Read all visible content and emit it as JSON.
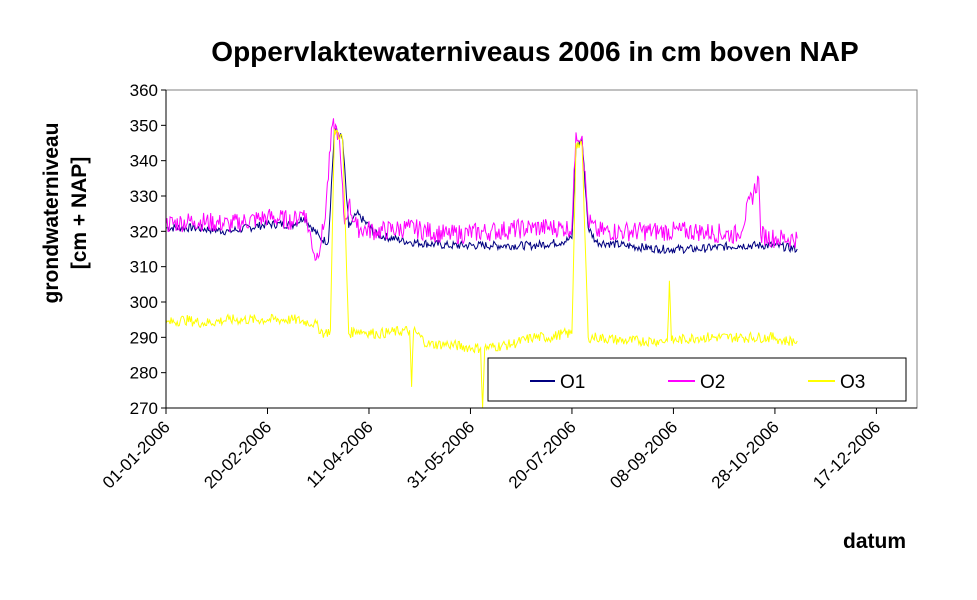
{
  "chart_data": {
    "type": "line",
    "title": "Oppervlaktewaterniveaus 2006 in cm boven NAP",
    "ylabel_lines": [
      "grondwaterniveau",
      "[cm + NAP]"
    ],
    "xlabel": "datum",
    "ylim": [
      270,
      360
    ],
    "yticks": [
      270,
      280,
      290,
      300,
      310,
      320,
      330,
      340,
      350,
      360
    ],
    "xlim": [
      "2006-01-01",
      "2007-01-06"
    ],
    "xticks": [
      "01-01-2006",
      "20-02-2006",
      "11-04-2006",
      "31-05-2006",
      "20-07-2006",
      "08-09-2006",
      "28-10-2006",
      "17-12-2006"
    ],
    "grid": false,
    "legend_position": "bottom-right",
    "series": [
      {
        "name": "O1",
        "color": "#000080",
        "x": [
          "2006-01-01",
          "2006-01-15",
          "2006-02-01",
          "2006-02-20",
          "2006-03-05",
          "2006-03-10",
          "2006-03-18",
          "2006-03-22",
          "2006-03-25",
          "2006-03-29",
          "2006-04-01",
          "2006-04-05",
          "2006-04-15",
          "2006-05-01",
          "2006-05-20",
          "2006-06-10",
          "2006-07-01",
          "2006-07-15",
          "2006-07-20",
          "2006-07-22",
          "2006-07-25",
          "2006-07-28",
          "2006-08-01",
          "2006-08-15",
          "2006-09-01",
          "2006-09-20",
          "2006-10-10",
          "2006-10-28",
          "2006-11-08"
        ],
        "values": [
          321,
          321,
          320,
          322,
          322,
          324,
          318,
          317,
          349,
          346,
          321,
          325,
          319,
          317,
          316,
          316,
          316,
          317,
          318,
          344,
          346,
          321,
          317,
          316,
          315,
          315,
          316,
          316,
          315
        ]
      },
      {
        "name": "O2",
        "color": "#ff00ff",
        "x": [
          "2006-01-01",
          "2006-01-15",
          "2006-02-01",
          "2006-02-20",
          "2006-03-05",
          "2006-03-10",
          "2006-03-16",
          "2006-03-20",
          "2006-03-24",
          "2006-03-27",
          "2006-03-30",
          "2006-04-01",
          "2006-04-05",
          "2006-04-15",
          "2006-05-01",
          "2006-05-20",
          "2006-06-10",
          "2006-07-01",
          "2006-07-15",
          "2006-07-20",
          "2006-07-22",
          "2006-07-25",
          "2006-07-28",
          "2006-08-01",
          "2006-08-15",
          "2006-09-01",
          "2006-09-20",
          "2006-10-10",
          "2006-10-20",
          "2006-10-21",
          "2006-10-28",
          "2006-11-08"
        ],
        "values": [
          322,
          323,
          322,
          324,
          323,
          326,
          312,
          322,
          350,
          348,
          322,
          328,
          321,
          320,
          321,
          319,
          320,
          321,
          321,
          321,
          348,
          347,
          323,
          320,
          320,
          320,
          320,
          319,
          335,
          319,
          318,
          318
        ]
      },
      {
        "name": "O3",
        "color": "#ffff00",
        "x": [
          "2006-01-01",
          "2006-01-10",
          "2006-01-20",
          "2006-02-01",
          "2006-02-20",
          "2006-03-05",
          "2006-03-15",
          "2006-03-20",
          "2006-03-23",
          "2006-03-25",
          "2006-03-29",
          "2006-04-01",
          "2006-04-05",
          "2006-04-15",
          "2006-05-01",
          "2006-05-02",
          "2006-05-03",
          "2006-05-10",
          "2006-05-20",
          "2006-06-01",
          "2006-06-05",
          "2006-06-06",
          "2006-06-07",
          "2006-06-20",
          "2006-07-01",
          "2006-07-10",
          "2006-07-15",
          "2006-07-20",
          "2006-07-22",
          "2006-07-25",
          "2006-07-28",
          "2006-08-01",
          "2006-08-15",
          "2006-09-01",
          "2006-09-05",
          "2006-09-06",
          "2006-09-07",
          "2006-09-20",
          "2006-10-10",
          "2006-10-28",
          "2006-11-01",
          "2006-11-08"
        ],
        "values": [
          294,
          295,
          294,
          295,
          295,
          295,
          294,
          291,
          292,
          349,
          346,
          291,
          292,
          291,
          292,
          276,
          292,
          288,
          288,
          287,
          287,
          270,
          287,
          288,
          290,
          290,
          291,
          291,
          345,
          344,
          290,
          290,
          289,
          289,
          289,
          306,
          289,
          290,
          290,
          290,
          289,
          289
        ]
      }
    ]
  }
}
